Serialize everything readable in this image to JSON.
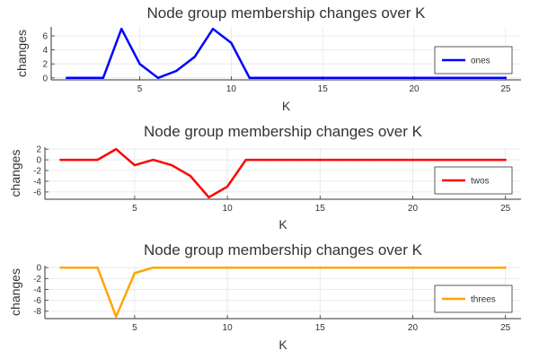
{
  "chart_data": [
    {
      "type": "line",
      "title": "Node group membership changes over K",
      "xlabel": "K",
      "ylabel": "changes",
      "xticks": [
        5,
        10,
        15,
        20,
        25
      ],
      "yticks": [
        0,
        2,
        4,
        6
      ],
      "xlim": [
        1,
        25
      ],
      "ylim": [
        0,
        7
      ],
      "grid": true,
      "legend_position": "right",
      "series": [
        {
          "name": "ones",
          "color": "#0000ff",
          "x": [
            1,
            2,
            3,
            4,
            5,
            6,
            7,
            8,
            9,
            10,
            11,
            12,
            13,
            14,
            15,
            16,
            17,
            18,
            19,
            20,
            21,
            22,
            23,
            24,
            25
          ],
          "values": [
            0,
            0,
            0,
            7,
            2,
            0,
            1,
            3,
            7,
            5,
            0,
            0,
            0,
            0,
            0,
            0,
            0,
            0,
            0,
            0,
            0,
            0,
            0,
            0,
            0
          ]
        }
      ]
    },
    {
      "type": "line",
      "title": "Node group membership changes over K",
      "xlabel": "K",
      "ylabel": "changes",
      "xticks": [
        5,
        10,
        15,
        20,
        25
      ],
      "yticks": [
        2,
        0,
        -2,
        -4,
        -6
      ],
      "xlim": [
        1,
        25
      ],
      "ylim": [
        -7,
        2
      ],
      "grid": true,
      "legend_position": "right",
      "series": [
        {
          "name": "twos",
          "color": "#ff0000",
          "x": [
            1,
            2,
            3,
            4,
            5,
            6,
            7,
            8,
            9,
            10,
            11,
            12,
            13,
            14,
            15,
            16,
            17,
            18,
            19,
            20,
            21,
            22,
            23,
            24,
            25
          ],
          "values": [
            0,
            0,
            0,
            2,
            -1,
            0,
            -1,
            -3,
            -7,
            -5,
            0,
            0,
            0,
            0,
            0,
            0,
            0,
            0,
            0,
            0,
            0,
            0,
            0,
            0,
            0
          ]
        }
      ]
    },
    {
      "type": "line",
      "title": "Node group membership changes over K",
      "xlabel": "K",
      "ylabel": "changes",
      "xticks": [
        5,
        10,
        15,
        20,
        25
      ],
      "yticks": [
        0,
        -2,
        -4,
        -6,
        -8
      ],
      "xlim": [
        1,
        25
      ],
      "ylim": [
        -9,
        0
      ],
      "grid": true,
      "legend_position": "right",
      "series": [
        {
          "name": "threes",
          "color": "#ffa500",
          "x": [
            1,
            2,
            3,
            4,
            5,
            6,
            7,
            8,
            9,
            10,
            11,
            12,
            13,
            14,
            15,
            16,
            17,
            18,
            19,
            20,
            21,
            22,
            23,
            24,
            25
          ],
          "values": [
            0,
            0,
            0,
            -9,
            -1,
            0,
            0,
            0,
            0,
            0,
            0,
            0,
            0,
            0,
            0,
            0,
            0,
            0,
            0,
            0,
            0,
            0,
            0,
            0,
            0
          ]
        }
      ]
    }
  ]
}
